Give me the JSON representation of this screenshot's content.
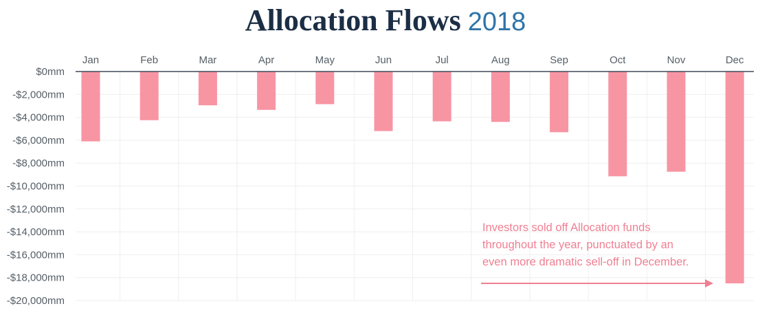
{
  "header": {
    "title_main": "Allocation Flows",
    "title_year": "2018"
  },
  "chart_data": {
    "type": "bar",
    "categories": [
      "Jan",
      "Feb",
      "Mar",
      "Apr",
      "May",
      "Jun",
      "Jul",
      "Aug",
      "Sep",
      "Oct",
      "Nov",
      "Dec"
    ],
    "values": [
      -6100,
      -4250,
      -2950,
      -3350,
      -2850,
      -5200,
      -4350,
      -4400,
      -5300,
      -9150,
      -8750,
      -18500
    ],
    "unit": "mm",
    "ylim": [
      -20000,
      0
    ],
    "yticks": [
      0,
      -2000,
      -4000,
      -6000,
      -8000,
      -10000,
      -12000,
      -14000,
      -16000,
      -18000,
      -20000
    ],
    "ytick_labels": [
      "$0mm",
      "-$2,000mm",
      "-$4,000mm",
      "-$6,000mm",
      "-$8,000mm",
      "-$10,000mm",
      "-$12,000mm",
      "-$14,000mm",
      "-$16,000mm",
      "-$18,000mm",
      "-$20,000mm"
    ],
    "x_axis_position": "top",
    "grid": true,
    "bar_color": "#f895a3",
    "annotation": {
      "lines": [
        "Investors sold off Allocation funds",
        "throughout the year, punctuated by an",
        "even more dramatic sell-off in December."
      ],
      "color": "#f07f92",
      "arrow_target": "Dec"
    }
  }
}
